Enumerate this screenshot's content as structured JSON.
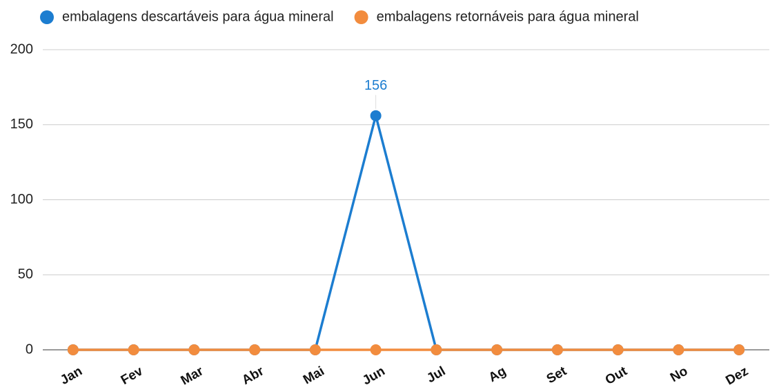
{
  "chart_data": {
    "type": "line",
    "categories": [
      "Jan",
      "Fev",
      "Mar",
      "Abr",
      "Mai",
      "Jun",
      "Jul",
      "Ag",
      "Set",
      "Out",
      "No",
      "Dez"
    ],
    "series": [
      {
        "name": "embalagens descartáveis para água mineral",
        "color": "#1c7dd0",
        "values": [
          0,
          0,
          0,
          0,
          0,
          156,
          0,
          0,
          0,
          0,
          0,
          0
        ],
        "value_labels": [
          null,
          null,
          null,
          null,
          null,
          "156",
          null,
          null,
          null,
          null,
          null,
          null
        ]
      },
      {
        "name": "embalagens retornáveis para água mineral",
        "color": "#f28c3e",
        "values": [
          0,
          0,
          0,
          0,
          0,
          0,
          0,
          0,
          0,
          0,
          0,
          0
        ]
      }
    ],
    "ylim": [
      0,
      200
    ],
    "yticks": [
      0,
      50,
      100,
      150,
      200
    ],
    "grid": true,
    "legend": "top"
  }
}
